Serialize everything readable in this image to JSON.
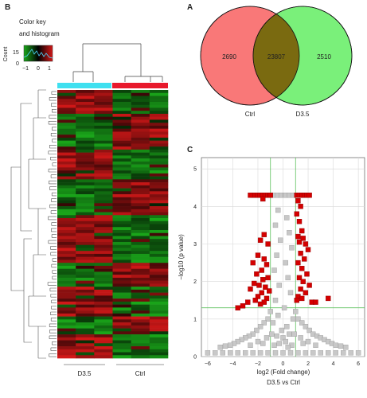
{
  "panels": {
    "heatmap_letter": "B",
    "venn_letter": "A",
    "volcano_letter": "C"
  },
  "heatmap": {
    "color_key_line1": "Color key",
    "color_key_line2": "and histogram",
    "count_label": "Count",
    "count_ticks": [
      "15",
      "0"
    ],
    "key_ticks": [
      "−1",
      "0",
      "1"
    ],
    "group_labels": [
      "D3.5",
      "Ctrl"
    ],
    "group_colors": [
      "#3fe0f0",
      "#e8192c"
    ],
    "low_color": "#1aa81a",
    "mid_color": "#000000",
    "high_color": "#d41818"
  },
  "venn": {
    "left_label": "Ctrl",
    "right_label": "D3.5",
    "left_only": "2690",
    "overlap": "23807",
    "right_only": "2510",
    "left_color": "#f97878",
    "right_color": "#7af07a",
    "overlap_color": "#7a6a10"
  },
  "chart_data": {
    "type": "scatter",
    "title": "",
    "xlabel": "log2 (Fold change)",
    "ylabel": "−log10 (p value)",
    "caption": "D3.5 vs Ctrl",
    "xlim": [
      -6.5,
      6.5
    ],
    "ylim": [
      0,
      5.3
    ],
    "xticks": [
      -6,
      -4,
      -2,
      0,
      2,
      4,
      6
    ],
    "yticks": [
      0,
      1,
      2,
      3,
      4,
      5
    ],
    "threshold_x": [
      -1,
      1
    ],
    "threshold_y": 1.3,
    "grid": true,
    "sig_color": "#d40000",
    "nonsig_color": "#c8c8c8",
    "series": [
      {
        "role": "significant",
        "points": [
          [
            -1.2,
            4.3
          ],
          [
            -1.4,
            4.3
          ],
          [
            -1.6,
            4.3
          ],
          [
            -1.8,
            4.3
          ],
          [
            -2.0,
            4.3
          ],
          [
            -2.2,
            4.3
          ],
          [
            -2.4,
            4.3
          ],
          [
            -2.6,
            4.3
          ],
          [
            -1.0,
            4.3
          ],
          [
            1.1,
            4.3
          ],
          [
            1.3,
            4.3
          ],
          [
            1.5,
            4.3
          ],
          [
            1.7,
            4.3
          ],
          [
            1.9,
            4.3
          ],
          [
            2.1,
            4.3
          ],
          [
            -1.6,
            4.2
          ],
          [
            1.2,
            4.15
          ],
          [
            1.4,
            4.0
          ],
          [
            1.1,
            3.8
          ],
          [
            1.3,
            3.6
          ],
          [
            1.5,
            3.35
          ],
          [
            1.2,
            3.2
          ],
          [
            1.6,
            3.15
          ],
          [
            1.3,
            3.05
          ],
          [
            1.8,
            3.0
          ],
          [
            2.0,
            2.85
          ],
          [
            1.4,
            2.75
          ],
          [
            1.7,
            2.6
          ],
          [
            1.2,
            2.5
          ],
          [
            1.5,
            2.35
          ],
          [
            1.9,
            2.2
          ],
          [
            1.3,
            2.1
          ],
          [
            1.6,
            2.0
          ],
          [
            2.1,
            1.9
          ],
          [
            1.4,
            1.8
          ],
          [
            1.8,
            1.7
          ],
          [
            1.2,
            1.6
          ],
          [
            1.5,
            1.55
          ],
          [
            1.1,
            1.5
          ],
          [
            2.3,
            1.45
          ],
          [
            2.6,
            1.45
          ],
          [
            3.6,
            1.55
          ],
          [
            -1.5,
            3.25
          ],
          [
            -1.8,
            3.1
          ],
          [
            -1.2,
            3.0
          ],
          [
            -2.0,
            2.7
          ],
          [
            -1.5,
            2.6
          ],
          [
            -2.4,
            2.5
          ],
          [
            -1.3,
            2.45
          ],
          [
            -1.7,
            2.3
          ],
          [
            -2.1,
            2.2
          ],
          [
            -1.2,
            2.1
          ],
          [
            -1.6,
            2.05
          ],
          [
            -2.3,
            1.95
          ],
          [
            -1.9,
            1.9
          ],
          [
            -1.4,
            1.85
          ],
          [
            -2.6,
            1.8
          ],
          [
            -1.1,
            1.75
          ],
          [
            -1.7,
            1.7
          ],
          [
            -2.0,
            1.6
          ],
          [
            -1.3,
            1.55
          ],
          [
            -2.2,
            1.5
          ],
          [
            -1.5,
            1.45
          ],
          [
            -2.8,
            1.45
          ],
          [
            -1.8,
            1.4
          ],
          [
            -3.2,
            1.35
          ],
          [
            -3.6,
            1.3
          ]
        ]
      },
      {
        "role": "not significant",
        "points": [
          [
            -6.0,
            0.1
          ],
          [
            -5.4,
            0.1
          ],
          [
            -4.8,
            0.1
          ],
          [
            -4.2,
            0.1
          ],
          [
            -3.6,
            0.1
          ],
          [
            -3.0,
            0.1
          ],
          [
            -2.4,
            0.1
          ],
          [
            -1.8,
            0.1
          ],
          [
            -1.2,
            0.1
          ],
          [
            -0.6,
            0.1
          ],
          [
            0.0,
            0.1
          ],
          [
            0.6,
            0.1
          ],
          [
            1.2,
            0.1
          ],
          [
            1.8,
            0.1
          ],
          [
            2.4,
            0.1
          ],
          [
            3.0,
            0.1
          ],
          [
            3.6,
            0.1
          ],
          [
            4.2,
            0.1
          ],
          [
            4.8,
            0.1
          ],
          [
            5.4,
            0.1
          ],
          [
            6.0,
            0.1
          ],
          [
            -0.2,
            4.3
          ],
          [
            0.2,
            4.3
          ],
          [
            0.5,
            4.3
          ],
          [
            -0.5,
            4.3
          ],
          [
            -0.8,
            4.3
          ],
          [
            0.8,
            4.3
          ],
          [
            -0.4,
            3.9
          ],
          [
            0.3,
            3.7
          ],
          [
            -0.6,
            3.5
          ],
          [
            0.5,
            3.3
          ],
          [
            -0.2,
            3.1
          ],
          [
            0.7,
            2.9
          ],
          [
            -0.5,
            2.7
          ],
          [
            0.2,
            2.5
          ],
          [
            -0.7,
            2.3
          ],
          [
            0.4,
            2.1
          ],
          [
            -0.3,
            1.9
          ],
          [
            0.6,
            1.7
          ],
          [
            -0.6,
            1.5
          ],
          [
            0.1,
            1.3
          ],
          [
            -0.4,
            1.1
          ],
          [
            0.8,
            1.0
          ],
          [
            -0.8,
            0.9
          ],
          [
            0.3,
            0.8
          ],
          [
            -0.1,
            0.7
          ],
          [
            0.5,
            0.6
          ],
          [
            -0.5,
            0.55
          ],
          [
            0.0,
            0.5
          ],
          [
            0.2,
            0.4
          ],
          [
            -0.3,
            0.35
          ],
          [
            0.7,
            0.3
          ],
          [
            -0.7,
            0.3
          ],
          [
            0.4,
            0.25
          ],
          [
            -1.0,
            1.2
          ],
          [
            -1.2,
            1.0
          ],
          [
            -1.5,
            0.9
          ],
          [
            -1.8,
            0.8
          ],
          [
            -2.1,
            0.7
          ],
          [
            -2.4,
            0.6
          ],
          [
            -2.7,
            0.55
          ],
          [
            -3.0,
            0.5
          ],
          [
            -3.3,
            0.45
          ],
          [
            -3.6,
            0.4
          ],
          [
            -3.9,
            0.35
          ],
          [
            -4.2,
            0.3
          ],
          [
            -4.6,
            0.28
          ],
          [
            -5.0,
            0.25
          ],
          [
            1.0,
            1.2
          ],
          [
            1.2,
            1.0
          ],
          [
            1.5,
            0.9
          ],
          [
            1.8,
            0.8
          ],
          [
            2.1,
            0.7
          ],
          [
            2.4,
            0.6
          ],
          [
            2.7,
            0.55
          ],
          [
            3.0,
            0.5
          ],
          [
            3.3,
            0.45
          ],
          [
            3.6,
            0.4
          ],
          [
            3.9,
            0.35
          ],
          [
            4.2,
            0.3
          ],
          [
            4.6,
            0.28
          ],
          [
            5.0,
            0.25
          ],
          [
            -1.3,
            0.5
          ],
          [
            -2.0,
            0.4
          ],
          [
            -2.6,
            0.3
          ],
          [
            1.4,
            0.5
          ],
          [
            2.0,
            0.4
          ],
          [
            2.6,
            0.3
          ],
          [
            -0.9,
            0.6
          ],
          [
            0.9,
            0.6
          ],
          [
            1.6,
            0.35
          ],
          [
            -1.6,
            0.35
          ]
        ]
      }
    ]
  }
}
